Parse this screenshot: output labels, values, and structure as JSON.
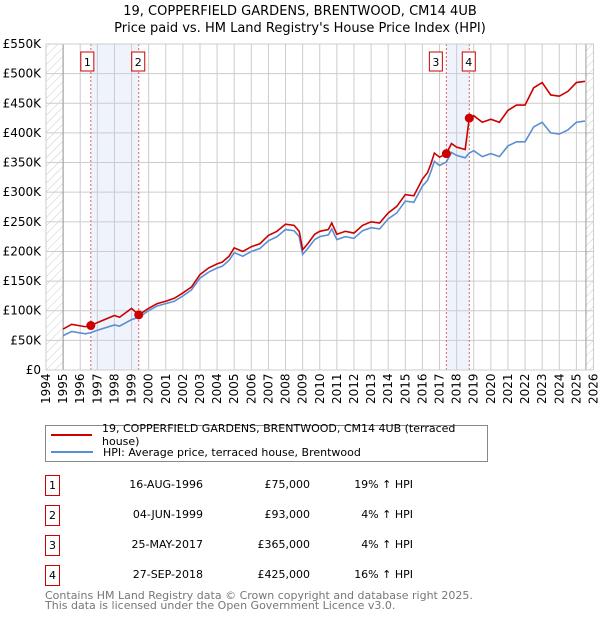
{
  "chart_data": {
    "type": "line",
    "title": "19, COPPERFIELD GARDENS, BRENTWOOD, CM14 4UB",
    "subtitle": "Price paid vs. HM Land Registry's House Price Index (HPI)",
    "xlim": [
      1994,
      2026
    ],
    "ylim": [
      0,
      550000
    ],
    "x_ticks": [
      "1994",
      "1995",
      "1996",
      "1997",
      "1998",
      "1999",
      "2000",
      "2001",
      "2002",
      "2003",
      "2004",
      "2005",
      "2006",
      "2007",
      "2008",
      "2009",
      "2010",
      "2011",
      "2012",
      "2013",
      "2014",
      "2015",
      "2016",
      "2017",
      "2018",
      "2019",
      "2020",
      "2021",
      "2022",
      "2023",
      "2024",
      "2025",
      "2026"
    ],
    "y_ticks": [
      "£0",
      "£50K",
      "£100K",
      "£150K",
      "£200K",
      "£250K",
      "£300K",
      "£350K",
      "£400K",
      "£450K",
      "£500K",
      "£550K"
    ],
    "grid": true,
    "x": [
      1995,
      1995.5,
      1996.3,
      1996.62,
      1997,
      1998,
      1998.3,
      1999,
      1999.42,
      2000,
      2000.5,
      2001,
      2001.5,
      2002,
      2002.5,
      2003,
      2003.5,
      2004,
      2004.3,
      2004.7,
      2005,
      2005.5,
      2006,
      2006.5,
      2007,
      2007.5,
      2008,
      2008.5,
      2008.8,
      2009,
      2009.3,
      2009.7,
      2010,
      2010.5,
      2010.7,
      2011,
      2011.5,
      2012,
      2012.5,
      2013,
      2013.5,
      2014,
      2014.5,
      2015,
      2015.5,
      2016,
      2016.3,
      2016.5,
      2016.7,
      2017,
      2017.4,
      2017.7,
      2018,
      2018.5,
      2018.74,
      2019,
      2019.5,
      2020,
      2020.5,
      2021,
      2021.5,
      2022,
      2022.5,
      2023,
      2023.5,
      2024,
      2024.5,
      2025,
      2025.5
    ],
    "series": [
      {
        "name": "19, COPPERFIELD GARDENS, BRENTWOOD, CM14 4UB (terraced house)",
        "color": "#cc0000",
        "values": [
          69,
          77,
          73,
          75,
          80,
          92,
          89,
          104,
          93,
          104,
          112,
          116,
          121,
          130,
          140,
          161,
          172,
          179,
          182,
          192,
          206,
          200,
          208,
          213,
          227,
          234,
          246,
          244,
          234,
          203,
          213,
          229,
          234,
          237,
          248,
          229,
          234,
          231,
          244,
          250,
          248,
          265,
          276,
          296,
          294,
          322,
          333,
          348,
          366,
          359,
          365,
          382,
          376,
          372,
          425,
          429,
          418,
          423,
          418,
          438,
          447,
          447,
          476,
          485,
          464,
          462,
          470,
          485,
          487
        ]
      },
      {
        "name": "HPI: Average price, terraced house, Brentwood",
        "color": "#5b8fd4",
        "values": [
          58,
          65,
          61,
          63,
          67,
          76,
          74,
          85,
          89,
          100,
          108,
          112,
          116,
          125,
          135,
          155,
          165,
          172,
          175,
          185,
          198,
          192,
          200,
          205,
          218,
          225,
          237,
          235,
          225,
          195,
          205,
          220,
          225,
          228,
          238,
          220,
          225,
          222,
          235,
          240,
          238,
          255,
          265,
          285,
          283,
          310,
          320,
          335,
          352,
          345,
          351,
          367,
          362,
          358,
          366,
          370,
          360,
          365,
          360,
          378,
          385,
          385,
          410,
          418,
          400,
          398,
          405,
          418,
          420
        ]
      }
    ],
    "values_unit": "thousand GBP",
    "sales": [
      {
        "label": "1",
        "date": "16-AUG-1996",
        "x": 1996.62,
        "price": "£75,000",
        "value": 75,
        "hpi": "19% ↑ HPI"
      },
      {
        "label": "2",
        "date": "04-JUN-1999",
        "x": 1999.42,
        "price": "£93,000",
        "value": 93,
        "hpi": "4% ↑ HPI"
      },
      {
        "label": "3",
        "date": "25-MAY-2017",
        "x": 2017.4,
        "price": "£365,000",
        "value": 365,
        "hpi": "4% ↑ HPI"
      },
      {
        "label": "4",
        "date": "27-SEP-2018",
        "x": 2018.74,
        "price": "£425,000",
        "value": 425,
        "hpi": "16% ↑ HPI"
      }
    ],
    "legend": "bottom"
  },
  "footer": {
    "line1": "Contains HM Land Registry data © Crown copyright and database right 2025.",
    "line2": "This data is licensed under the Open Government Licence v3.0."
  }
}
